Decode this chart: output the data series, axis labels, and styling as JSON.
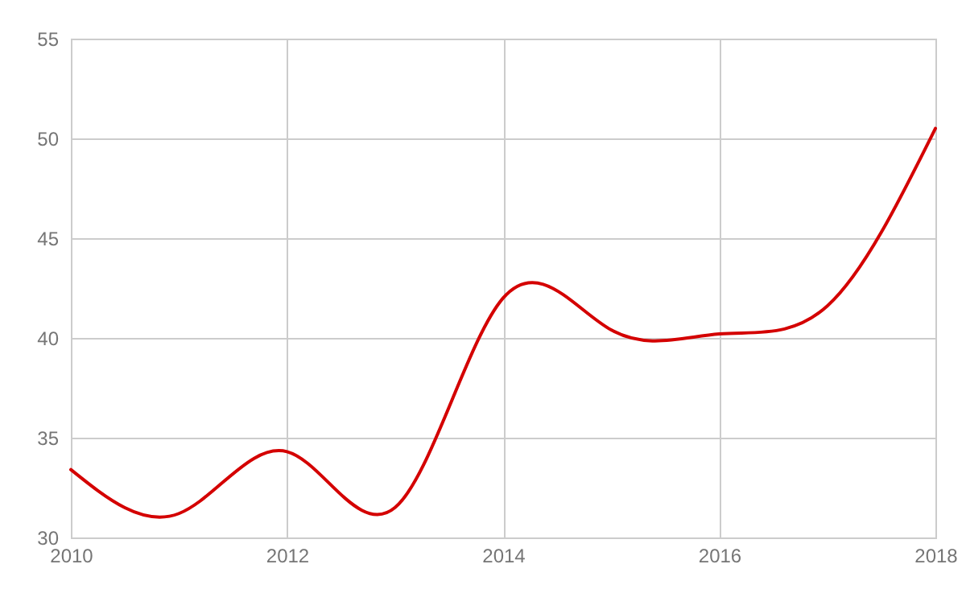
{
  "chart_data": {
    "type": "line",
    "x": [
      2010,
      2011,
      2012,
      2013,
      2014,
      2015,
      2016,
      2017,
      2018
    ],
    "series": [
      {
        "color": "#d40000",
        "values": [
          33.4,
          31.2,
          34.3,
          31.5,
          42.0,
          40.4,
          40.2,
          41.6,
          50.5
        ]
      }
    ],
    "xlim": [
      2010,
      2018
    ],
    "xticks": [
      2010,
      2012,
      2014,
      2016,
      2018
    ],
    "ylim": [
      30,
      55
    ],
    "yticks": [
      30,
      35,
      40,
      45,
      50,
      55
    ],
    "grid": true,
    "marker": "none",
    "line_style": "solid"
  }
}
